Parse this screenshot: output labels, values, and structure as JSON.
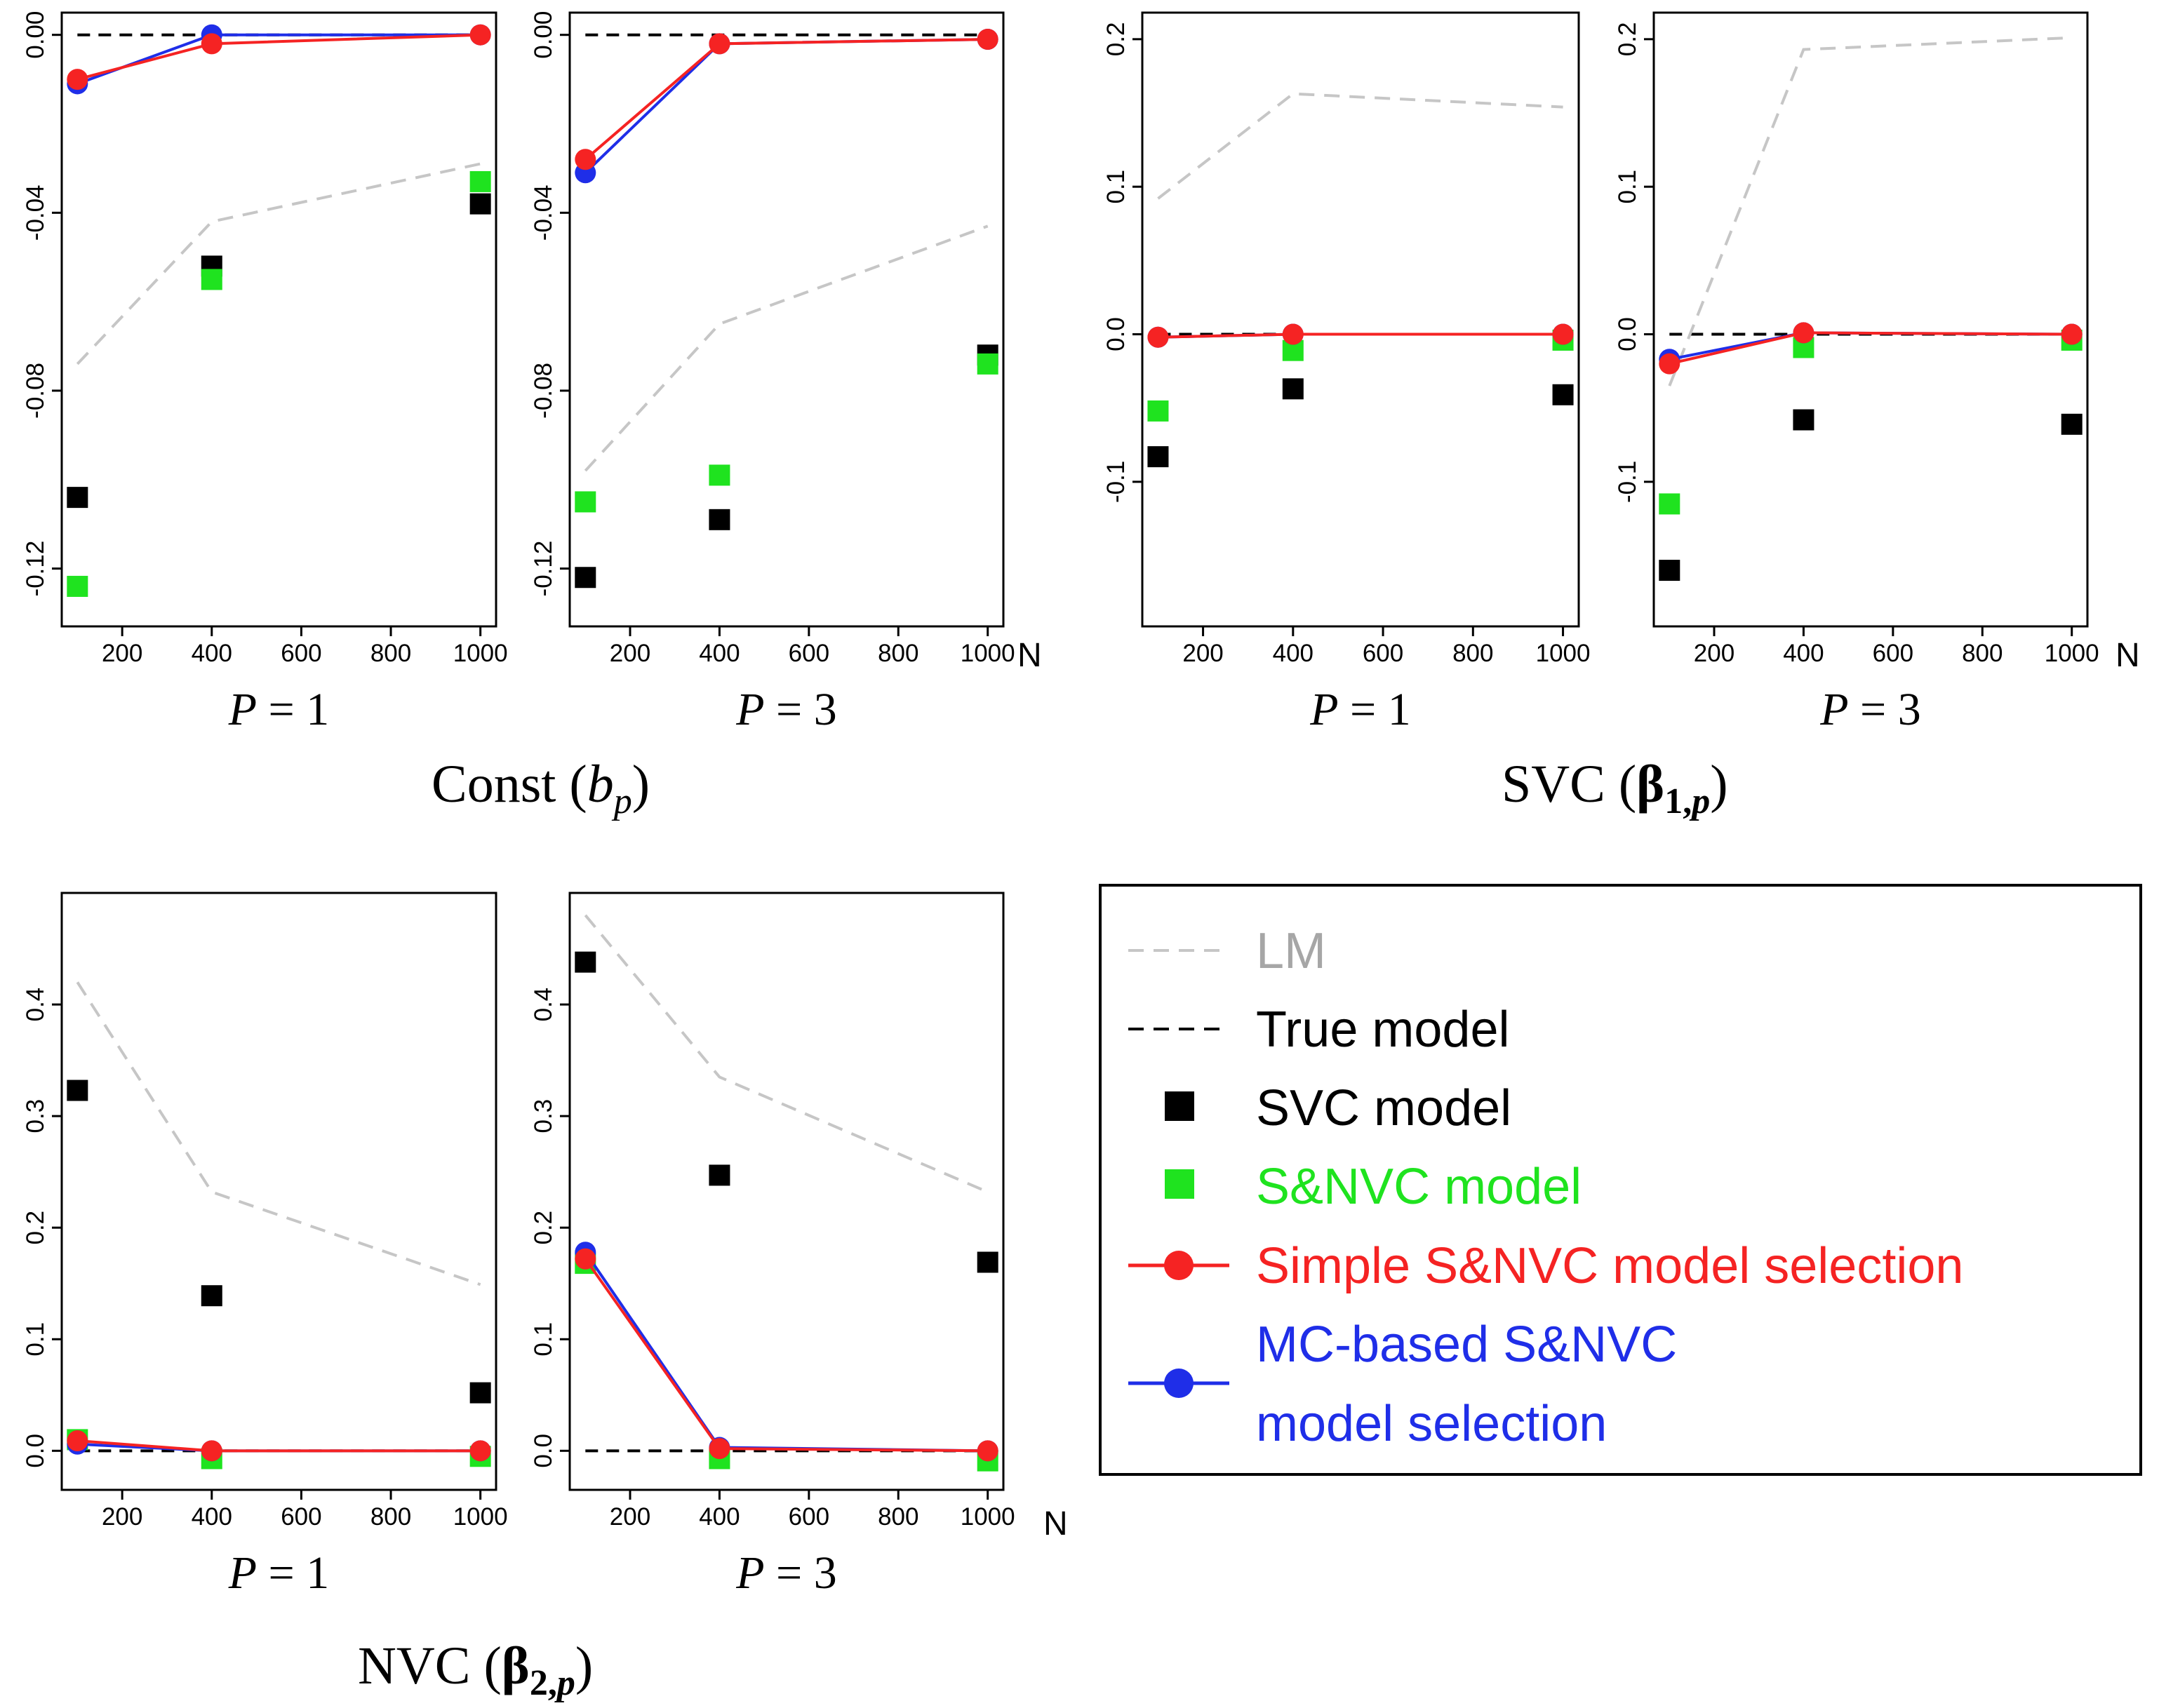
{
  "chart_data": [
    {
      "type": "scatter",
      "group": "const",
      "caption": {
        "italic": "P",
        "rest": " = 1"
      },
      "x": [
        100,
        400,
        1000
      ],
      "xticks": [
        "200",
        "400",
        "600",
        "800",
        "1000"
      ],
      "xtick_values": [
        200,
        400,
        600,
        800,
        1000
      ],
      "yticks": [
        "0.00",
        "-0.04",
        "-0.08",
        "-0.12"
      ],
      "ytick_values": [
        0,
        -0.04,
        -0.08,
        -0.12
      ],
      "ylim": [
        -0.133,
        0.005
      ],
      "true_value": 0,
      "series": [
        {
          "name": "LM",
          "values": [
            -0.074,
            -0.042,
            -0.029
          ]
        },
        {
          "name": "SVC model",
          "values": [
            -0.104,
            -0.052,
            -0.038
          ]
        },
        {
          "name": "S&NVC model",
          "values": [
            -0.124,
            -0.055,
            -0.033
          ]
        },
        {
          "name": "MC-based S&NVC model selection",
          "values": [
            -0.011,
            0.0,
            0.0
          ]
        },
        {
          "name": "Simple S&NVC model selection",
          "values": [
            -0.01,
            -0.002,
            0.0
          ]
        }
      ]
    },
    {
      "type": "scatter",
      "group": "const",
      "caption": {
        "italic": "P",
        "rest": " = 3"
      },
      "x": [
        100,
        400,
        1000
      ],
      "xticks": [
        "200",
        "400",
        "600",
        "800",
        "1000"
      ],
      "xtick_values": [
        200,
        400,
        600,
        800,
        1000
      ],
      "yticks": [
        "0.00",
        "-0.04",
        "-0.08",
        "-0.12"
      ],
      "ytick_values": [
        0,
        -0.04,
        -0.08,
        -0.12
      ],
      "ylim": [
        -0.133,
        0.005
      ],
      "true_value": 0,
      "series": [
        {
          "name": "LM",
          "values": [
            -0.098,
            -0.065,
            -0.043
          ]
        },
        {
          "name": "SVC model",
          "values": [
            -0.122,
            -0.109,
            -0.072
          ]
        },
        {
          "name": "S&NVC model",
          "values": [
            -0.105,
            -0.099,
            -0.074
          ]
        },
        {
          "name": "MC-based S&NVC model selection",
          "values": [
            -0.031,
            -0.002,
            -0.001
          ]
        },
        {
          "name": "Simple S&NVC model selection",
          "values": [
            -0.028,
            -0.002,
            -0.001
          ]
        }
      ]
    },
    {
      "type": "scatter",
      "group": "svc",
      "caption": {
        "italic": "P",
        "rest": " = 1"
      },
      "x": [
        100,
        400,
        1000
      ],
      "xticks": [
        "200",
        "400",
        "600",
        "800",
        "1000"
      ],
      "xtick_values": [
        200,
        400,
        600,
        800,
        1000
      ],
      "yticks": [
        "0.2",
        "0.1",
        "0.0",
        "-0.1"
      ],
      "ytick_values": [
        0.2,
        0.1,
        0.0,
        -0.1
      ],
      "ylim": [
        -0.198,
        0.218
      ],
      "true_value": 0,
      "series": [
        {
          "name": "LM",
          "values": [
            0.092,
            0.163,
            0.154
          ]
        },
        {
          "name": "SVC model",
          "values": [
            -0.083,
            -0.037,
            -0.041
          ]
        },
        {
          "name": "S&NVC model",
          "values": [
            -0.052,
            -0.011,
            -0.004
          ]
        },
        {
          "name": "MC-based S&NVC model selection",
          "values": [
            -0.002,
            0.0,
            0.0
          ]
        },
        {
          "name": "Simple S&NVC model selection",
          "values": [
            -0.002,
            0.0,
            0.0
          ]
        }
      ]
    },
    {
      "type": "scatter",
      "group": "svc",
      "caption": {
        "italic": "P",
        "rest": " = 3"
      },
      "x": [
        100,
        400,
        1000
      ],
      "xticks": [
        "200",
        "400",
        "600",
        "800",
        "1000"
      ],
      "xtick_values": [
        200,
        400,
        600,
        800,
        1000
      ],
      "yticks": [
        "0.2",
        "0.1",
        "0.0",
        "-0.1"
      ],
      "ytick_values": [
        0.2,
        0.1,
        0.0,
        -0.1
      ],
      "ylim": [
        -0.198,
        0.218
      ],
      "true_value": 0,
      "series": [
        {
          "name": "LM",
          "values": [
            -0.035,
            0.193,
            0.201
          ]
        },
        {
          "name": "SVC model",
          "values": [
            -0.16,
            -0.058,
            -0.061
          ]
        },
        {
          "name": "S&NVC model",
          "values": [
            -0.115,
            -0.009,
            -0.004
          ]
        },
        {
          "name": "MC-based S&NVC model selection",
          "values": [
            -0.017,
            0.001,
            0.0
          ]
        },
        {
          "name": "Simple S&NVC model selection",
          "values": [
            -0.02,
            0.001,
            0.0
          ]
        }
      ]
    },
    {
      "type": "scatter",
      "group": "nvc",
      "caption": {
        "italic": "P",
        "rest": " = 1"
      },
      "x": [
        100,
        400,
        1000
      ],
      "xticks": [
        "200",
        "400",
        "600",
        "800",
        "1000"
      ],
      "xtick_values": [
        200,
        400,
        600,
        800,
        1000
      ],
      "yticks": [
        "0.0",
        "0.1",
        "0.2",
        "0.3",
        "0.4"
      ],
      "ytick_values": [
        0,
        0.1,
        0.2,
        0.3,
        0.4
      ],
      "ylim": [
        -0.035,
        0.5
      ],
      "true_value": 0,
      "series": [
        {
          "name": "LM",
          "values": [
            0.42,
            0.232,
            0.149
          ]
        },
        {
          "name": "SVC model",
          "values": [
            0.323,
            0.139,
            0.052
          ]
        },
        {
          "name": "S&NVC model",
          "values": [
            0.01,
            -0.007,
            -0.005
          ]
        },
        {
          "name": "MC-based S&NVC model selection",
          "values": [
            0.006,
            0.0,
            0.0
          ]
        },
        {
          "name": "Simple S&NVC model selection",
          "values": [
            0.009,
            0.0,
            0.0
          ]
        }
      ]
    },
    {
      "type": "scatter",
      "group": "nvc",
      "caption": {
        "italic": "P",
        "rest": " = 3"
      },
      "x": [
        100,
        400,
        1000
      ],
      "xticks": [
        "200",
        "400",
        "600",
        "800",
        "1000"
      ],
      "xtick_values": [
        200,
        400,
        600,
        800,
        1000
      ],
      "yticks": [
        "0.0",
        "0.1",
        "0.2",
        "0.3",
        "0.4"
      ],
      "ytick_values": [
        0,
        0.1,
        0.2,
        0.3,
        0.4
      ],
      "ylim": [
        -0.035,
        0.5
      ],
      "true_value": 0,
      "series": [
        {
          "name": "LM",
          "values": [
            0.48,
            0.335,
            0.232
          ]
        },
        {
          "name": "SVC model",
          "values": [
            0.438,
            0.247,
            0.169
          ]
        },
        {
          "name": "S&NVC model",
          "values": [
            0.168,
            -0.007,
            -0.009
          ]
        },
        {
          "name": "MC-based S&NVC model selection",
          "values": [
            0.178,
            0.003,
            0.0
          ]
        },
        {
          "name": "Simple S&NVC model selection",
          "values": [
            0.172,
            0.002,
            0.0
          ]
        }
      ]
    }
  ],
  "axis_label_n": "N",
  "group_titles": {
    "const": {
      "main": "Const (",
      "bold": "",
      "italic": "b",
      "sub": "p",
      "close": ")"
    },
    "svc": {
      "main": "SVC (",
      "bold": "β",
      "sub": "1,",
      "sub_italic": "p",
      "close": ")"
    },
    "nvc": {
      "main": "NVC (",
      "bold": "β",
      "sub": "2,",
      "sub_italic": "p",
      "close": ")"
    }
  },
  "legend": {
    "lm": "LM",
    "true_model": "True model",
    "svc": "SVC model",
    "snvc": "S&NVC model",
    "simple": "Simple S&NVC model selection",
    "mc_line1": "MC-based S&NVC",
    "mc_line2": "model selection"
  },
  "colors": {
    "lm": "#c6c6c6",
    "true": "#000000",
    "svc": "#000000",
    "snvc": "#1fe31f",
    "simple": "#f52323",
    "mc": "#1f2ee8"
  }
}
